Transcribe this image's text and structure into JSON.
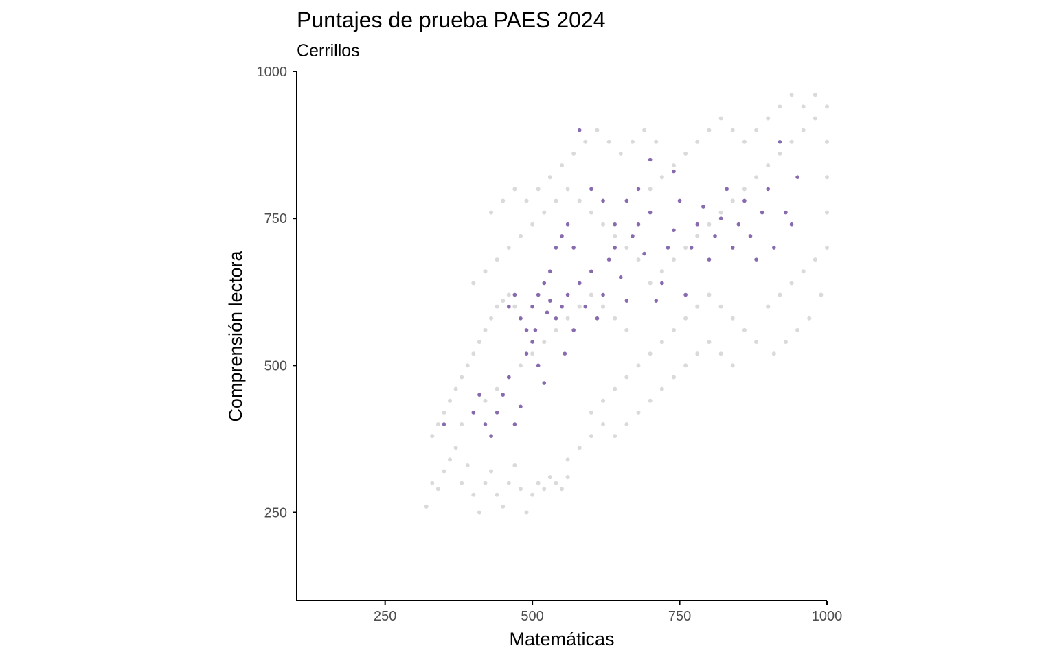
{
  "chart_data": {
    "type": "scatter",
    "title": "Puntajes de prueba PAES 2024",
    "subtitle": "Cerrillos",
    "xlabel": "Matemáticas",
    "ylabel": "Comprensión lectora",
    "xlim": [
      100,
      1000
    ],
    "ylim": [
      100,
      1000
    ],
    "xticks": [
      250,
      500,
      750,
      1000
    ],
    "yticks": [
      250,
      500,
      750,
      1000
    ],
    "xtick_labels": [
      "250",
      "500",
      "750",
      "1000"
    ],
    "ytick_labels": [
      "250",
      "500",
      "750",
      "1000"
    ],
    "grid": false,
    "legend": "none",
    "series": [
      {
        "color": "#d3d3d3",
        "description": "all national test scores (gray background cloud)",
        "points": [
          [
            320,
            260
          ],
          [
            330,
            300
          ],
          [
            340,
            290
          ],
          [
            350,
            320
          ],
          [
            360,
            340
          ],
          [
            370,
            360
          ],
          [
            380,
            300
          ],
          [
            390,
            330
          ],
          [
            400,
            280
          ],
          [
            410,
            250
          ],
          [
            420,
            300
          ],
          [
            430,
            320
          ],
          [
            440,
            280
          ],
          [
            450,
            260
          ],
          [
            460,
            300
          ],
          [
            470,
            330
          ],
          [
            480,
            290
          ],
          [
            490,
            250
          ],
          [
            500,
            280
          ],
          [
            510,
            300
          ],
          [
            520,
            290
          ],
          [
            530,
            310
          ],
          [
            540,
            300
          ],
          [
            550,
            290
          ],
          [
            560,
            310
          ],
          [
            330,
            380
          ],
          [
            340,
            400
          ],
          [
            350,
            420
          ],
          [
            360,
            440
          ],
          [
            370,
            460
          ],
          [
            380,
            480
          ],
          [
            390,
            500
          ],
          [
            400,
            520
          ],
          [
            410,
            540
          ],
          [
            420,
            560
          ],
          [
            430,
            580
          ],
          [
            440,
            600
          ],
          [
            450,
            610
          ],
          [
            460,
            620
          ],
          [
            470,
            600
          ],
          [
            380,
            400
          ],
          [
            400,
            420
          ],
          [
            420,
            440
          ],
          [
            440,
            460
          ],
          [
            460,
            480
          ],
          [
            480,
            500
          ],
          [
            500,
            520
          ],
          [
            520,
            540
          ],
          [
            540,
            560
          ],
          [
            560,
            580
          ],
          [
            580,
            600
          ],
          [
            600,
            620
          ],
          [
            620,
            600
          ],
          [
            640,
            580
          ],
          [
            660,
            560
          ],
          [
            400,
            640
          ],
          [
            420,
            660
          ],
          [
            440,
            680
          ],
          [
            460,
            700
          ],
          [
            480,
            720
          ],
          [
            500,
            740
          ],
          [
            520,
            760
          ],
          [
            540,
            780
          ],
          [
            560,
            800
          ],
          [
            580,
            780
          ],
          [
            600,
            760
          ],
          [
            620,
            740
          ],
          [
            640,
            720
          ],
          [
            660,
            700
          ],
          [
            680,
            680
          ],
          [
            430,
            760
          ],
          [
            450,
            780
          ],
          [
            470,
            800
          ],
          [
            490,
            780
          ],
          [
            510,
            800
          ],
          [
            530,
            820
          ],
          [
            550,
            840
          ],
          [
            570,
            860
          ],
          [
            590,
            880
          ],
          [
            610,
            900
          ],
          [
            630,
            880
          ],
          [
            650,
            860
          ],
          [
            670,
            880
          ],
          [
            690,
            900
          ],
          [
            710,
            880
          ],
          [
            600,
            420
          ],
          [
            620,
            440
          ],
          [
            640,
            460
          ],
          [
            660,
            480
          ],
          [
            680,
            500
          ],
          [
            700,
            520
          ],
          [
            720,
            540
          ],
          [
            740,
            560
          ],
          [
            760,
            580
          ],
          [
            780,
            600
          ],
          [
            800,
            620
          ],
          [
            820,
            600
          ],
          [
            840,
            580
          ],
          [
            860,
            560
          ],
          [
            880,
            540
          ],
          [
            700,
            640
          ],
          [
            720,
            660
          ],
          [
            740,
            680
          ],
          [
            760,
            700
          ],
          [
            780,
            720
          ],
          [
            800,
            740
          ],
          [
            820,
            760
          ],
          [
            840,
            780
          ],
          [
            860,
            800
          ],
          [
            880,
            820
          ],
          [
            900,
            840
          ],
          [
            920,
            860
          ],
          [
            940,
            880
          ],
          [
            960,
            900
          ],
          [
            980,
            920
          ],
          [
            700,
            800
          ],
          [
            720,
            820
          ],
          [
            740,
            840
          ],
          [
            760,
            860
          ],
          [
            780,
            880
          ],
          [
            800,
            900
          ],
          [
            820,
            920
          ],
          [
            840,
            900
          ],
          [
            860,
            880
          ],
          [
            880,
            900
          ],
          [
            900,
            920
          ],
          [
            920,
            940
          ],
          [
            940,
            960
          ],
          [
            960,
            940
          ],
          [
            980,
            960
          ],
          [
            900,
            600
          ],
          [
            920,
            620
          ],
          [
            940,
            640
          ],
          [
            960,
            660
          ],
          [
            980,
            680
          ],
          [
            1000,
            700
          ],
          [
            1000,
            760
          ],
          [
            1000,
            820
          ],
          [
            1000,
            880
          ],
          [
            1000,
            940
          ],
          [
            990,
            620
          ],
          [
            970,
            580
          ],
          [
            950,
            560
          ],
          [
            930,
            540
          ],
          [
            910,
            520
          ],
          [
            560,
            340
          ],
          [
            580,
            360
          ],
          [
            600,
            380
          ],
          [
            620,
            400
          ],
          [
            640,
            380
          ],
          [
            660,
            400
          ],
          [
            680,
            420
          ],
          [
            700,
            440
          ],
          [
            720,
            460
          ],
          [
            740,
            480
          ],
          [
            760,
            500
          ],
          [
            780,
            520
          ],
          [
            800,
            540
          ],
          [
            820,
            520
          ],
          [
            840,
            500
          ]
        ]
      },
      {
        "color": "#7b5aa6",
        "description": "Cerrillos students (purple points)",
        "points": [
          [
            350,
            400
          ],
          [
            400,
            420
          ],
          [
            410,
            450
          ],
          [
            420,
            400
          ],
          [
            430,
            380
          ],
          [
            440,
            420
          ],
          [
            450,
            450
          ],
          [
            460,
            480
          ],
          [
            470,
            400
          ],
          [
            480,
            430
          ],
          [
            490,
            520
          ],
          [
            500,
            540
          ],
          [
            505,
            560
          ],
          [
            510,
            500
          ],
          [
            520,
            470
          ],
          [
            525,
            590
          ],
          [
            530,
            610
          ],
          [
            540,
            580
          ],
          [
            550,
            600
          ],
          [
            555,
            520
          ],
          [
            560,
            620
          ],
          [
            570,
            560
          ],
          [
            580,
            640
          ],
          [
            590,
            600
          ],
          [
            600,
            660
          ],
          [
            610,
            580
          ],
          [
            620,
            620
          ],
          [
            630,
            680
          ],
          [
            640,
            700
          ],
          [
            650,
            650
          ],
          [
            660,
            610
          ],
          [
            670,
            720
          ],
          [
            680,
            740
          ],
          [
            690,
            690
          ],
          [
            700,
            760
          ],
          [
            710,
            610
          ],
          [
            720,
            640
          ],
          [
            730,
            700
          ],
          [
            740,
            730
          ],
          [
            750,
            780
          ],
          [
            760,
            620
          ],
          [
            770,
            700
          ],
          [
            780,
            740
          ],
          [
            790,
            770
          ],
          [
            800,
            680
          ],
          [
            810,
            720
          ],
          [
            820,
            750
          ],
          [
            830,
            800
          ],
          [
            840,
            700
          ],
          [
            850,
            740
          ],
          [
            860,
            780
          ],
          [
            870,
            720
          ],
          [
            880,
            680
          ],
          [
            890,
            760
          ],
          [
            900,
            800
          ],
          [
            910,
            700
          ],
          [
            920,
            880
          ],
          [
            930,
            760
          ],
          [
            940,
            740
          ],
          [
            950,
            820
          ],
          [
            460,
            600
          ],
          [
            470,
            620
          ],
          [
            480,
            580
          ],
          [
            490,
            560
          ],
          [
            500,
            600
          ],
          [
            510,
            620
          ],
          [
            520,
            640
          ],
          [
            530,
            660
          ],
          [
            540,
            700
          ],
          [
            550,
            720
          ],
          [
            560,
            740
          ],
          [
            570,
            700
          ],
          [
            580,
            900
          ],
          [
            600,
            800
          ],
          [
            620,
            780
          ],
          [
            640,
            740
          ],
          [
            660,
            780
          ],
          [
            680,
            800
          ],
          [
            700,
            850
          ],
          [
            740,
            830
          ]
        ]
      }
    ]
  }
}
